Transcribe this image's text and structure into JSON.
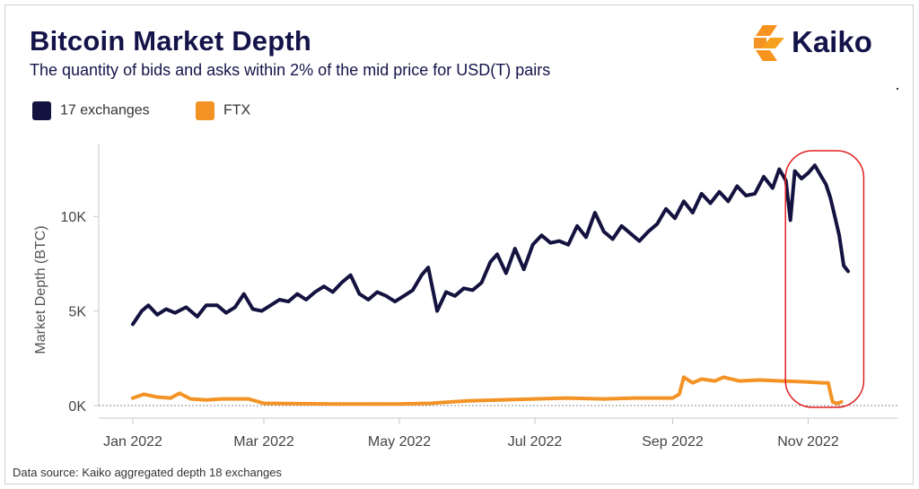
{
  "header": {
    "title": "Bitcoin Market Depth",
    "subtitle": "The quantity of bids and asks within 2% of the mid price for USD(T) pairs"
  },
  "logo": {
    "text": "Kaiko",
    "icon": "kaiko-logo-icon",
    "color": "#f7931e"
  },
  "legend": [
    {
      "label": "17 exchanges",
      "color": "#14123f"
    },
    {
      "label": "FTX",
      "color": "#f39325"
    }
  ],
  "source": "Data source: Kaiko aggregated depth 18 exchanges",
  "chart_data": {
    "type": "line",
    "title": "Bitcoin Market Depth",
    "subtitle": "The quantity of bids and asks within 2% of the mid price for USD(T) pairs",
    "xlabel": "",
    "ylabel": "Market Depth (BTC)",
    "xlim": [
      "2022-01-01",
      "2022-11-21"
    ],
    "ylim": [
      0,
      13000
    ],
    "x_ticks": [
      "Jan 2022",
      "Mar 2022",
      "May 2022",
      "Jul 2022",
      "Sep 2022",
      "Nov 2022"
    ],
    "y_ticks": [
      "0K",
      "5K",
      "10K"
    ],
    "y_tick_values": [
      0,
      5000,
      10000
    ],
    "grid": false,
    "legend_position": "top-left",
    "annotation": {
      "type": "highlight-box",
      "color": "#e02020",
      "x_range": [
        "2022-10-23",
        "2022-11-24"
      ]
    },
    "series": [
      {
        "name": "17 exchanges",
        "color": "#14123f",
        "points": [
          [
            "2022-01-01",
            4300
          ],
          [
            "2022-01-05",
            5000
          ],
          [
            "2022-01-08",
            5300
          ],
          [
            "2022-01-12",
            4800
          ],
          [
            "2022-01-16",
            5100
          ],
          [
            "2022-01-20",
            4900
          ],
          [
            "2022-01-25",
            5200
          ],
          [
            "2022-01-30",
            4700
          ],
          [
            "2022-02-03",
            5300
          ],
          [
            "2022-02-08",
            5300
          ],
          [
            "2022-02-12",
            4900
          ],
          [
            "2022-02-16",
            5200
          ],
          [
            "2022-02-20",
            5900
          ],
          [
            "2022-02-24",
            5100
          ],
          [
            "2022-02-28",
            5000
          ],
          [
            "2022-03-04",
            5300
          ],
          [
            "2022-03-08",
            5600
          ],
          [
            "2022-03-12",
            5500
          ],
          [
            "2022-03-16",
            5900
          ],
          [
            "2022-03-20",
            5600
          ],
          [
            "2022-03-24",
            6000
          ],
          [
            "2022-03-28",
            6300
          ],
          [
            "2022-04-01",
            6000
          ],
          [
            "2022-04-05",
            6500
          ],
          [
            "2022-04-09",
            6900
          ],
          [
            "2022-04-13",
            5900
          ],
          [
            "2022-04-17",
            5600
          ],
          [
            "2022-04-21",
            6000
          ],
          [
            "2022-04-25",
            5800
          ],
          [
            "2022-04-29",
            5500
          ],
          [
            "2022-05-03",
            5800
          ],
          [
            "2022-05-07",
            6100
          ],
          [
            "2022-05-11",
            6900
          ],
          [
            "2022-05-14",
            7300
          ],
          [
            "2022-05-18",
            5000
          ],
          [
            "2022-05-22",
            6000
          ],
          [
            "2022-05-26",
            5800
          ],
          [
            "2022-05-30",
            6200
          ],
          [
            "2022-06-03",
            6100
          ],
          [
            "2022-06-07",
            6500
          ],
          [
            "2022-06-11",
            7600
          ],
          [
            "2022-06-14",
            8000
          ],
          [
            "2022-06-18",
            7000
          ],
          [
            "2022-06-22",
            8300
          ],
          [
            "2022-06-26",
            7200
          ],
          [
            "2022-06-30",
            8500
          ],
          [
            "2022-07-04",
            9000
          ],
          [
            "2022-07-08",
            8600
          ],
          [
            "2022-07-12",
            8700
          ],
          [
            "2022-07-16",
            8500
          ],
          [
            "2022-07-20",
            9500
          ],
          [
            "2022-07-24",
            8900
          ],
          [
            "2022-07-28",
            10200
          ],
          [
            "2022-08-01",
            9200
          ],
          [
            "2022-08-05",
            8800
          ],
          [
            "2022-08-09",
            9500
          ],
          [
            "2022-08-13",
            9100
          ],
          [
            "2022-08-17",
            8700
          ],
          [
            "2022-08-21",
            9200
          ],
          [
            "2022-08-25",
            9600
          ],
          [
            "2022-08-29",
            10400
          ],
          [
            "2022-09-02",
            9900
          ],
          [
            "2022-09-06",
            10800
          ],
          [
            "2022-09-10",
            10200
          ],
          [
            "2022-09-14",
            11200
          ],
          [
            "2022-09-18",
            10700
          ],
          [
            "2022-09-22",
            11300
          ],
          [
            "2022-09-26",
            10800
          ],
          [
            "2022-09-30",
            11600
          ],
          [
            "2022-10-04",
            11100
          ],
          [
            "2022-10-08",
            11200
          ],
          [
            "2022-10-12",
            12100
          ],
          [
            "2022-10-16",
            11500
          ],
          [
            "2022-10-19",
            12500
          ],
          [
            "2022-10-22",
            11900
          ],
          [
            "2022-10-24",
            9800
          ],
          [
            "2022-10-26",
            12400
          ],
          [
            "2022-10-29",
            12000
          ],
          [
            "2022-11-01",
            12300
          ],
          [
            "2022-11-04",
            12700
          ],
          [
            "2022-11-07",
            12100
          ],
          [
            "2022-11-09",
            11700
          ],
          [
            "2022-11-11",
            11000
          ],
          [
            "2022-11-13",
            10000
          ],
          [
            "2022-11-15",
            9000
          ],
          [
            "2022-11-17",
            7400
          ],
          [
            "2022-11-19",
            7100
          ]
        ]
      },
      {
        "name": "FTX",
        "color": "#f39325",
        "points": [
          [
            "2022-01-01",
            400
          ],
          [
            "2022-01-06",
            600
          ],
          [
            "2022-01-12",
            450
          ],
          [
            "2022-01-18",
            400
          ],
          [
            "2022-01-22",
            650
          ],
          [
            "2022-01-27",
            350
          ],
          [
            "2022-02-03",
            300
          ],
          [
            "2022-02-10",
            350
          ],
          [
            "2022-02-22",
            350
          ],
          [
            "2022-03-01",
            120
          ],
          [
            "2022-03-15",
            100
          ],
          [
            "2022-04-01",
            80
          ],
          [
            "2022-04-15",
            80
          ],
          [
            "2022-05-01",
            80
          ],
          [
            "2022-05-15",
            120
          ],
          [
            "2022-06-01",
            250
          ],
          [
            "2022-06-15",
            300
          ],
          [
            "2022-07-01",
            350
          ],
          [
            "2022-07-15",
            400
          ],
          [
            "2022-08-01",
            350
          ],
          [
            "2022-08-15",
            400
          ],
          [
            "2022-09-01",
            400
          ],
          [
            "2022-09-04",
            600
          ],
          [
            "2022-09-06",
            1500
          ],
          [
            "2022-09-10",
            1200
          ],
          [
            "2022-09-14",
            1400
          ],
          [
            "2022-09-20",
            1300
          ],
          [
            "2022-09-24",
            1500
          ],
          [
            "2022-10-01",
            1300
          ],
          [
            "2022-10-10",
            1350
          ],
          [
            "2022-10-20",
            1300
          ],
          [
            "2022-11-01",
            1250
          ],
          [
            "2022-11-08",
            1200
          ],
          [
            "2022-11-10",
            1200
          ],
          [
            "2022-11-12",
            200
          ],
          [
            "2022-11-14",
            100
          ],
          [
            "2022-11-16",
            200
          ]
        ]
      }
    ]
  }
}
